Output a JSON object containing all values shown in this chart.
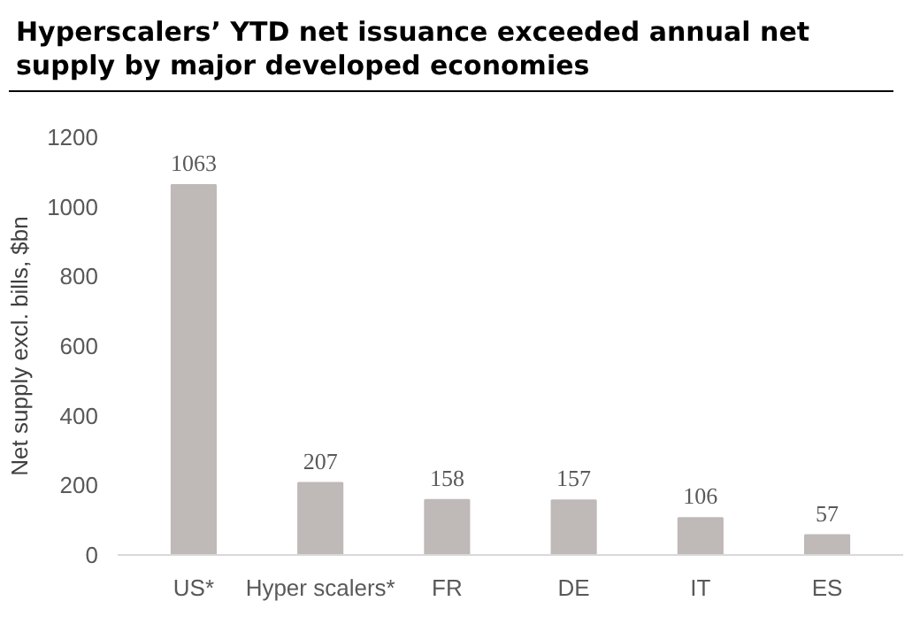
{
  "chart_data": {
    "type": "bar",
    "title": "Hyperscalers’ YTD net issuance exceeded annual net supply by major developed economies",
    "ylabel": "Net supply excl. bills, $bn",
    "categories": [
      "US*",
      "Hyper scalers*",
      "FR",
      "DE",
      "IT",
      "ES"
    ],
    "values": [
      1063,
      207,
      158,
      157,
      106,
      57
    ],
    "color": "#bfb9b8",
    "ylim": [
      0,
      1200
    ],
    "yticks": [
      0,
      200,
      400,
      600,
      800,
      1000,
      1200
    ],
    "data_labels": true
  }
}
